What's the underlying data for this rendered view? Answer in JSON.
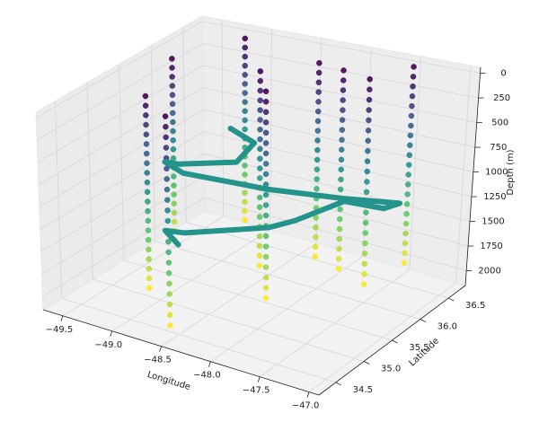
{
  "chart_data": {
    "type": "scatter3d",
    "xlabel": "Longitude",
    "ylabel": "Latitude",
    "zlabel": "Depth (m)",
    "xlim": [
      -49.7,
      -46.9
    ],
    "ylim": [
      34.2,
      36.8
    ],
    "zlim": [
      -60,
      2150
    ],
    "z_inverted": true,
    "colormap": "viridis",
    "grid": true,
    "xticks": [
      {
        "value": -49.5,
        "label": "−49.5"
      },
      {
        "value": -49,
        "label": "−49.0"
      },
      {
        "value": -48.5,
        "label": "−48.5"
      },
      {
        "value": -48,
        "label": "−48.0"
      },
      {
        "value": -47.5,
        "label": "−47.5"
      },
      {
        "value": -47,
        "label": "−47.0"
      }
    ],
    "yticks": [
      34.5,
      {
        "value": 35,
        "label": "35.0"
      },
      35.5,
      {
        "value": 36,
        "label": "36.0"
      },
      36.5
    ],
    "zticks": [
      0,
      250,
      500,
      750,
      1000,
      1250,
      1500,
      1750,
      2000
    ],
    "profiles": [
      {
        "x": -49.14,
        "y": 36.6,
        "z": [
          0,
          100,
          200,
          300,
          400,
          500,
          600,
          700,
          800,
          900,
          1000,
          1100,
          1200,
          1300,
          1400,
          1500,
          1600,
          1700,
          1800,
          1900,
          2000
        ]
      },
      {
        "x": -48.2,
        "y": 36.3,
        "z": [
          0,
          100,
          200,
          300,
          400,
          500,
          600,
          700,
          800,
          900,
          1000,
          1100,
          1200,
          1300,
          1400,
          1500,
          1600,
          1700,
          1800,
          1900,
          2000
        ]
      },
      {
        "x": -47.46,
        "y": 36.63,
        "z": [
          0,
          100,
          200,
          300,
          400,
          500,
          600,
          700,
          800,
          900,
          1000,
          1100,
          1200,
          1300,
          1400,
          1500,
          1600,
          1700,
          1800,
          1900,
          2000
        ]
      },
      {
        "x": -47.89,
        "y": 36.2,
        "z": [
          0,
          100,
          200,
          300,
          400,
          500,
          600,
          700,
          800,
          900,
          1000,
          1100,
          1200,
          1300,
          1400,
          1500,
          1600,
          1700,
          1800,
          1900,
          2000
        ]
      },
      {
        "x": -47.53,
        "y": 36.05,
        "z": [
          0,
          100,
          200,
          300,
          400,
          500,
          600,
          700,
          800,
          900,
          1000,
          1100,
          1200,
          1300,
          1400,
          1500,
          1600,
          1700,
          1800,
          1900,
          2000
        ]
      },
      {
        "x": -49.42,
        "y": 35.89,
        "z": [
          0,
          100,
          200,
          300,
          400,
          500,
          600,
          700,
          800,
          900,
          1000,
          1100,
          1200,
          1300,
          1400,
          1500,
          1600,
          1700,
          1800,
          1900,
          2000
        ]
      },
      {
        "x": -48.51,
        "y": 35.86,
        "z": [
          0,
          100,
          200,
          300,
          400,
          500,
          600,
          700,
          800,
          900,
          1000,
          1100,
          1200,
          1300,
          1400,
          1500,
          1600,
          1700,
          1800,
          1900,
          2000
        ]
      },
      {
        "x": -48.1,
        "y": 35.31,
        "z": [
          0,
          100,
          200,
          300,
          400,
          500,
          600,
          700,
          800,
          900,
          1000,
          1100,
          1200,
          1300,
          1400,
          1500,
          1600,
          1700,
          1800,
          1900,
          2000
        ]
      },
      {
        "x": -48.49,
        "y": 34.34,
        "z": [
          0,
          100,
          200,
          300,
          400,
          500,
          600,
          700,
          800,
          900,
          1000,
          1100,
          1200,
          1300,
          1400,
          1500,
          1600,
          1700,
          1800,
          1900,
          2000
        ]
      },
      {
        "x": -49.05,
        "y": 34.9,
        "z": [
          0,
          100,
          200,
          300,
          400,
          500,
          600,
          700,
          800,
          900,
          1000,
          1100,
          1200,
          1300,
          1400,
          1500,
          1600,
          1700,
          1800,
          1900,
          2000
        ]
      }
    ],
    "trajectory": {
      "x": [
        -49.14,
        -48.83,
        -48.77,
        -49.18,
        -49.32,
        -49.03,
        -48.16,
        -47.47,
        -46.98,
        -47.02,
        -47.45,
        -47.59,
        -47.69,
        -48.26,
        -48.45,
        -48.3
      ],
      "y": [
        36.37,
        36.27,
        35.89,
        35.61,
        35.6,
        35.44,
        35.44,
        35.56,
        35.71,
        35.51,
        35.55,
        34.97,
        34.7,
        34.25,
        34.23,
        34.2
      ],
      "z": [
        900,
        950,
        1000,
        1000,
        1000,
        1000,
        1000,
        1000,
        1000,
        1000,
        1020,
        1050,
        1050,
        1050,
        1050,
        1150
      ]
    }
  }
}
